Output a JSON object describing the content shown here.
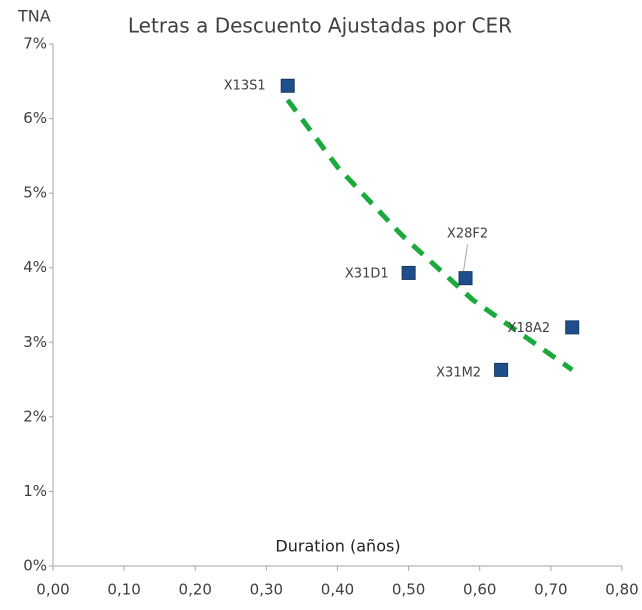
{
  "chart_data": {
    "type": "scatter",
    "title": "Letras a Descuento Ajustadas por CER",
    "y_label": "TNA",
    "x_label": "Duration (años)",
    "series": [
      {
        "name": null,
        "color": "#1f4e8c",
        "labels": [
          "X13S1",
          "X31D1",
          "X28F2",
          "X18A2",
          "X31M2"
        ],
        "x": [
          0.33,
          0.5,
          0.58,
          0.73,
          0.63
        ],
        "values": [
          6.44,
          3.93,
          3.86,
          3.2,
          2.63
        ]
      }
    ],
    "trendline": {
      "color": "#1aaa3c",
      "x": [
        0.33,
        0.4,
        0.49,
        0.59,
        0.73
      ],
      "values": [
        6.25,
        5.35,
        4.44,
        3.57,
        2.63
      ]
    },
    "xlim": [
      0,
      0.8
    ],
    "ylim": [
      0,
      7
    ],
    "xticks": [
      {
        "value": 0,
        "label": "0,00"
      },
      {
        "value": 0.1,
        "label": "0,10"
      },
      {
        "value": 0.2,
        "label": "0,20"
      },
      {
        "value": 0.3,
        "label": "0,30"
      },
      {
        "value": 0.4,
        "label": "0,40"
      },
      {
        "value": 0.5,
        "label": "0,50"
      },
      {
        "value": 0.6,
        "label": "0,60"
      },
      {
        "value": 0.7,
        "label": "0,70"
      },
      {
        "value": 0.8,
        "label": "0,80"
      }
    ],
    "yticks": [
      {
        "value": 0,
        "label": "0%"
      },
      {
        "value": 1,
        "label": "1%"
      },
      {
        "value": 2,
        "label": "2%"
      },
      {
        "value": 3,
        "label": "3%"
      },
      {
        "value": 4,
        "label": "4%"
      },
      {
        "value": 5,
        "label": "5%"
      },
      {
        "value": 6,
        "label": "6%"
      },
      {
        "value": 7,
        "label": "7%"
      }
    ],
    "grid": false
  }
}
